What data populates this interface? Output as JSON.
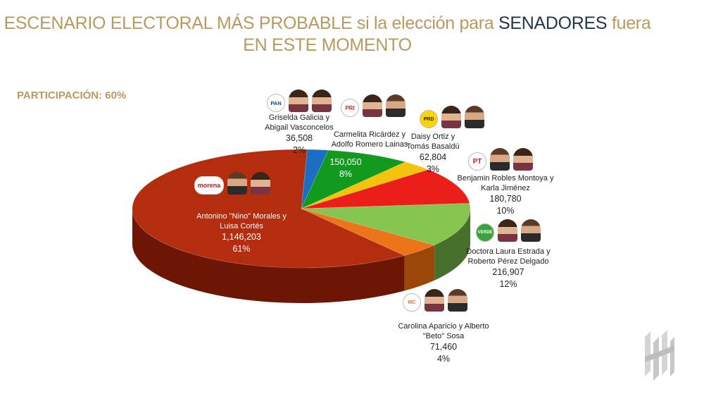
{
  "title": {
    "part1": "ESCENARIO ELECTORAL MÁS PROBABLE si la elección para ",
    "highlight": "SENADORES",
    "part2": " fuera",
    "line2": "EN ESTE MOMENTO"
  },
  "participation": "PARTICIPACIÓN: 60%",
  "parties": {
    "morena": "morena",
    "pan": "PAN",
    "pri": "PRI",
    "prd": "PRD",
    "pt": "PT",
    "verde": "VERDE",
    "mc": "MC"
  },
  "chart_data": {
    "type": "pie",
    "slices": [
      {
        "key": "pan",
        "name_line1": "Griselda Galicia y",
        "name_line2": "Abigail Vasconcelos",
        "votes": "36,508",
        "percent_label": "2%",
        "value": 2,
        "color": "#1b6ec2",
        "side": "#10467d"
      },
      {
        "key": "pri",
        "name_line1": "Carmelita Ricárdez y",
        "name_line2": "Adolfo Romero Lainas",
        "votes": "150,050",
        "percent_label": "8%",
        "value": 8,
        "color": "#129a1e",
        "side": "#0a5e12"
      },
      {
        "key": "prd",
        "name_line1": "Daisy Ortiz y",
        "name_line2": "Tomás Basaldú",
        "votes": "62,804",
        "percent_label": "3%",
        "value": 3,
        "color": "#f2c40c",
        "side": "#9b7d05"
      },
      {
        "key": "pt",
        "name_line1": "Benjamin Robles Montoya y",
        "name_line2": "Karla Jiménez",
        "votes": "180,780",
        "percent_label": "10%",
        "value": 10,
        "color": "#ec1e1a",
        "side": "#8e0f0d"
      },
      {
        "key": "verde",
        "name_line1": "Doctora Laura Estrada y",
        "name_line2": "Roberto Pérez Delgado",
        "votes": "216,907",
        "percent_label": "12%",
        "value": 12,
        "color": "#86c550",
        "side": "#47702a"
      },
      {
        "key": "mc",
        "name_line1": "Carolina Aparicio y Alberto",
        "name_line2": "\"Beto\" Sosa",
        "votes": "71,460",
        "percent_label": "4%",
        "value": 4,
        "color": "#ec7419",
        "side": "#9a4709"
      },
      {
        "key": "morena",
        "name_line1": "Antonino \"Nino\" Morales y",
        "name_line2": "Luisa Cortés",
        "votes": "1,146,203",
        "percent_label": "61%",
        "value": 61,
        "color": "#b32d0e",
        "side": "#6e1606"
      }
    ]
  }
}
